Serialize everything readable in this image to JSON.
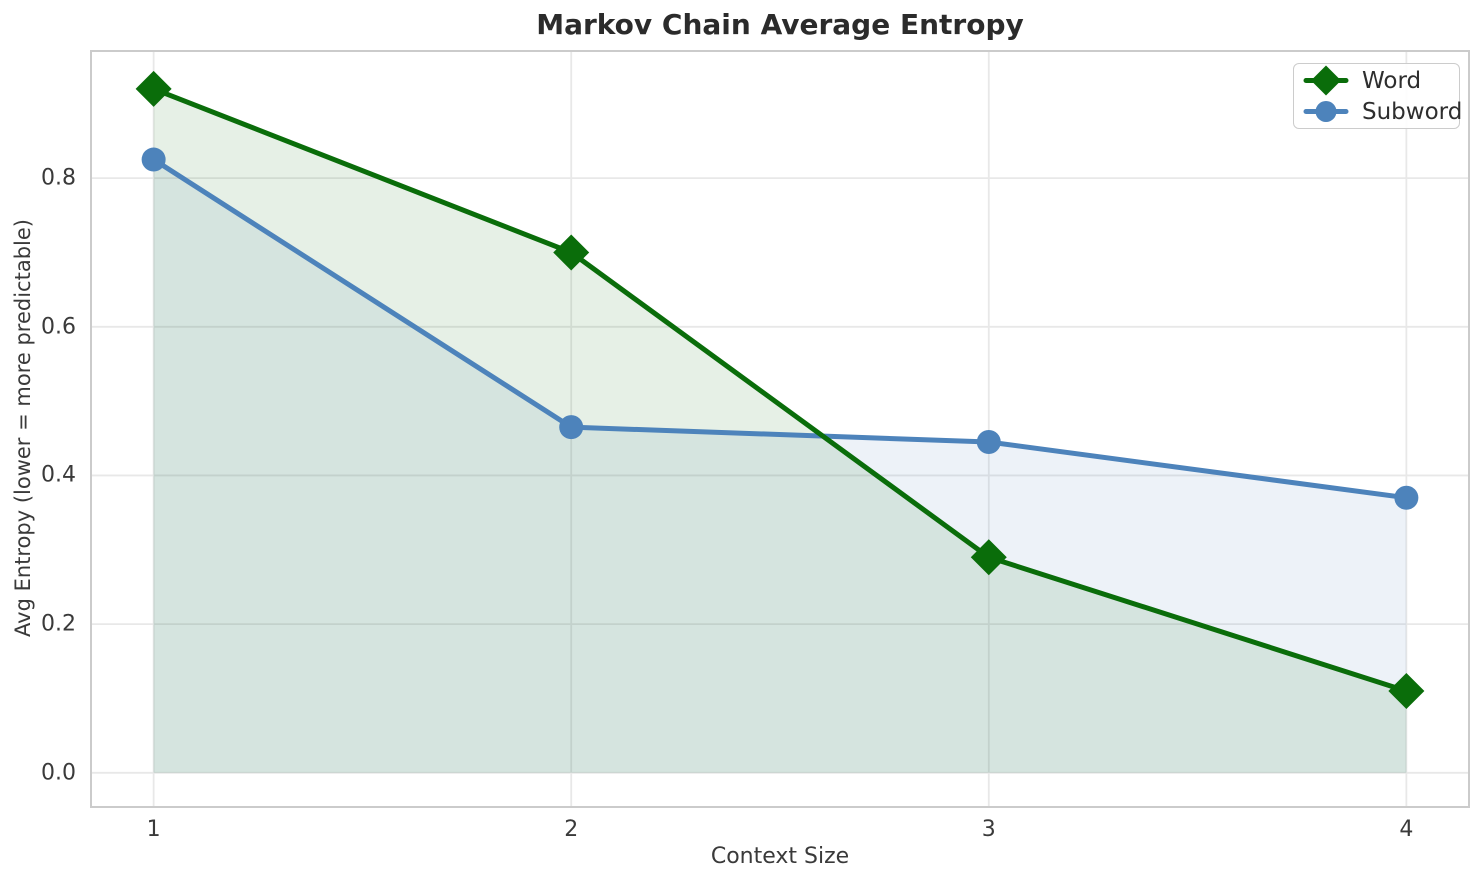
{
  "chart_data": {
    "type": "line",
    "title": "Markov Chain Average Entropy",
    "xlabel": "Context Size",
    "ylabel": "Avg Entropy (lower = more predictable)",
    "x": [
      1,
      2,
      3,
      4
    ],
    "xtick_labels": [
      "1",
      "2",
      "3",
      "4"
    ],
    "yticks": [
      0.0,
      0.2,
      0.4,
      0.6,
      0.8
    ],
    "ytick_labels": [
      "0.0",
      "0.2",
      "0.4",
      "0.6",
      "0.8"
    ],
    "xlim": [
      0.85,
      4.15
    ],
    "ylim": [
      -0.046,
      0.971
    ],
    "grid": true,
    "legend_position": "upper right",
    "area_fill_baseline": 0.0,
    "series": [
      {
        "name": "Word",
        "marker": "diamond",
        "color": "#0a6d0a",
        "fill_opacity": 0.1,
        "values": [
          0.92,
          0.7,
          0.29,
          0.11
        ]
      },
      {
        "name": "Subword",
        "marker": "circle",
        "color": "#4d83bb",
        "fill_opacity": 0.1,
        "values": [
          0.825,
          0.465,
          0.445,
          0.37
        ]
      }
    ],
    "colors": {
      "grid": "#e8e8e8",
      "spine": "#cbcbcb",
      "title_text": "#2b2b2b",
      "tick_text": "#3a3a3a",
      "legend_text": "#2e2e2e",
      "legend_border": "#cccccc",
      "background": "#ffffff"
    }
  }
}
